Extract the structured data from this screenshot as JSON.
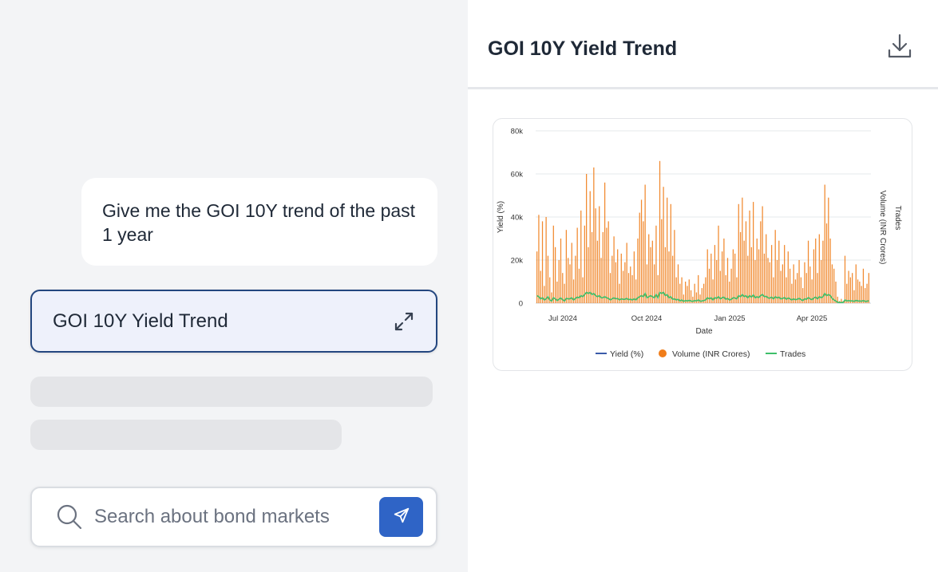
{
  "chat": {
    "user_message": "Give me the GOI 10Y trend of the past 1 year",
    "artifact_card_title": "GOI 10Y Yield Trend"
  },
  "search": {
    "placeholder": "Search about bond markets",
    "value": ""
  },
  "panel": {
    "title": "GOI 10Y Yield Trend"
  },
  "icons": {
    "expand": "expand-icon",
    "search": "search-icon",
    "send": "send-icon",
    "download": "download-icon"
  },
  "colors": {
    "accent": "#2f64c6",
    "card_border": "#23467f",
    "yield": "#3b5ba9",
    "volume": "#f07d1a",
    "trades": "#3dbf6a"
  },
  "chart_data": {
    "type": "bar",
    "xlabel": "Date",
    "ylabel_left": "Yield (%)",
    "ylabel_right_1": "Volume (INR Crores)",
    "ylabel_right_2": "Trades",
    "y_ticks": [
      "0",
      "20k",
      "40k",
      "60k",
      "80k"
    ],
    "ylim": [
      0,
      80000
    ],
    "x_ticks": [
      "Jul 2024",
      "Oct 2024",
      "Jan 2025",
      "Apr 2025"
    ],
    "grid": true,
    "legend_position": "bottom",
    "legend": [
      "Yield (%)",
      "Volume (INR Crores)",
      "Trades"
    ],
    "series": [
      {
        "name": "Volume (INR Crores)",
        "values": [
          24000,
          41000,
          15000,
          38000,
          8000,
          40000,
          22000,
          12000,
          5000,
          36000,
          26000,
          10000,
          20000,
          30000,
          14000,
          9000,
          34000,
          21000,
          18000,
          28000,
          11000,
          22000,
          35000,
          16000,
          43000,
          12000,
          36000,
          60000,
          26000,
          52000,
          33000,
          63000,
          44000,
          29000,
          45000,
          21000,
          33000,
          56000,
          35000,
          38000,
          14000,
          22000,
          31000,
          19000,
          25000,
          9000,
          23000,
          15000,
          19000,
          28000,
          14000,
          17000,
          13000,
          24000,
          11000,
          30000,
          42000,
          48000,
          38000,
          55000,
          18000,
          32000,
          26000,
          29000,
          18000,
          36000,
          13000,
          66000,
          39000,
          54000,
          26000,
          49000,
          24000,
          46000,
          22000,
          34000,
          12000,
          18000,
          9000,
          12000,
          4000,
          10000,
          8000,
          11000,
          6000,
          3000,
          9000,
          5000,
          13000,
          4000,
          7000,
          9000,
          12000,
          25000,
          16000,
          23000,
          11000,
          27000,
          20000,
          36000,
          15000,
          24000,
          30000,
          13000,
          21000,
          10000,
          16000,
          25000,
          23000,
          12000,
          46000,
          33000,
          49000,
          29000,
          38000,
          22000,
          43000,
          26000,
          47000,
          20000,
          30000,
          25000,
          38000,
          45000,
          23000,
          32000,
          21000,
          19000,
          27000,
          12000,
          34000,
          20000,
          29000,
          15000,
          18000,
          27000,
          12000,
          24000,
          16000,
          9000,
          18000,
          11000,
          14000,
          20000,
          12000,
          7000,
          19000,
          14000,
          29000,
          17000,
          11000,
          25000,
          30000,
          14000,
          32000,
          20000,
          29000,
          55000,
          37000,
          49000,
          30000,
          18000,
          16000,
          10000,
          3000,
          1000,
          2000,
          1000,
          22000,
          9000,
          15000,
          12000,
          14000,
          6000,
          18000,
          11000,
          10000,
          8000,
          16000,
          7000,
          9000,
          14000
        ]
      },
      {
        "name": "Trades",
        "values": [
          3500,
          3000,
          2000,
          2500,
          1500,
          2000,
          3000,
          1500,
          1000,
          2500,
          2000,
          1200,
          1800,
          2400,
          1600,
          1000,
          2200,
          2000,
          2000,
          2500,
          1500,
          2200,
          2800,
          2500,
          3500,
          3000,
          4000,
          5000,
          4500,
          5000,
          4000,
          4500,
          3500,
          3000,
          3500,
          2500,
          2500,
          3000,
          2500,
          2200,
          1500,
          2000,
          2500,
          2000,
          2200,
          1500,
          2000,
          1800,
          1800,
          2200,
          1600,
          1800,
          1500,
          2000,
          1500,
          2500,
          3000,
          3500,
          3000,
          4500,
          2500,
          3000,
          3500,
          3000,
          2500,
          4000,
          2500,
          5000,
          4500,
          5000,
          3500,
          4000,
          2500,
          3000,
          1800,
          2000,
          1500,
          1800,
          1000,
          1500,
          800,
          1200,
          1000,
          1300,
          1000,
          800,
          1200,
          1000,
          1500,
          900,
          1000,
          1200,
          1500,
          2500,
          2000,
          2500,
          1500,
          2600,
          2200,
          3000,
          2000,
          2500,
          2800,
          1800,
          2200,
          1500,
          1800,
          2500,
          2400,
          2000,
          3500,
          3000,
          4000,
          3000,
          3500,
          2500,
          3500,
          2800,
          3800,
          2500,
          3000,
          2600,
          3500,
          4000,
          3000,
          3200,
          2500,
          2300,
          2800,
          2000,
          3000,
          2400,
          2800,
          2000,
          2200,
          2600,
          1800,
          2400,
          2000,
          1500,
          2000,
          1600,
          1800,
          2200,
          1700,
          1200,
          2000,
          1800,
          2600,
          2000,
          1600,
          2400,
          2800,
          2000,
          3000,
          2500,
          3000,
          4500,
          3500,
          4000,
          3500,
          2200,
          1500,
          1000,
          400,
          300,
          300,
          300,
          1500,
          1000,
          1200,
          1000,
          1100,
          800,
          1300,
          1000,
          1000,
          900,
          1200,
          800,
          900,
          1100
        ]
      },
      {
        "name": "Yield (%)",
        "values": []
      }
    ]
  }
}
